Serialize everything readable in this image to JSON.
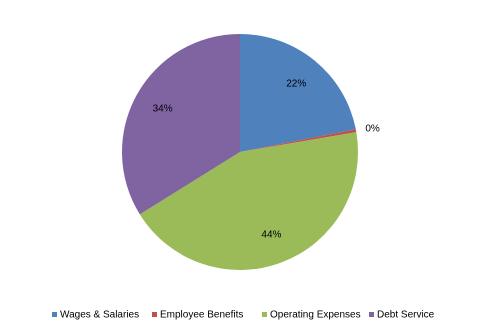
{
  "chart_data": {
    "type": "pie",
    "categories": [
      "Wages & Salaries",
      "Employee Benefits",
      "Operating Expenses",
      "Debt Service"
    ],
    "values": [
      22,
      0.4,
      44,
      34
    ],
    "value_labels": [
      "22%",
      "0%",
      "44%",
      "34%"
    ],
    "colors": [
      "#4f81bd",
      "#c0504d",
      "#9bbb59",
      "#8064a2"
    ],
    "legend": "bottom"
  }
}
